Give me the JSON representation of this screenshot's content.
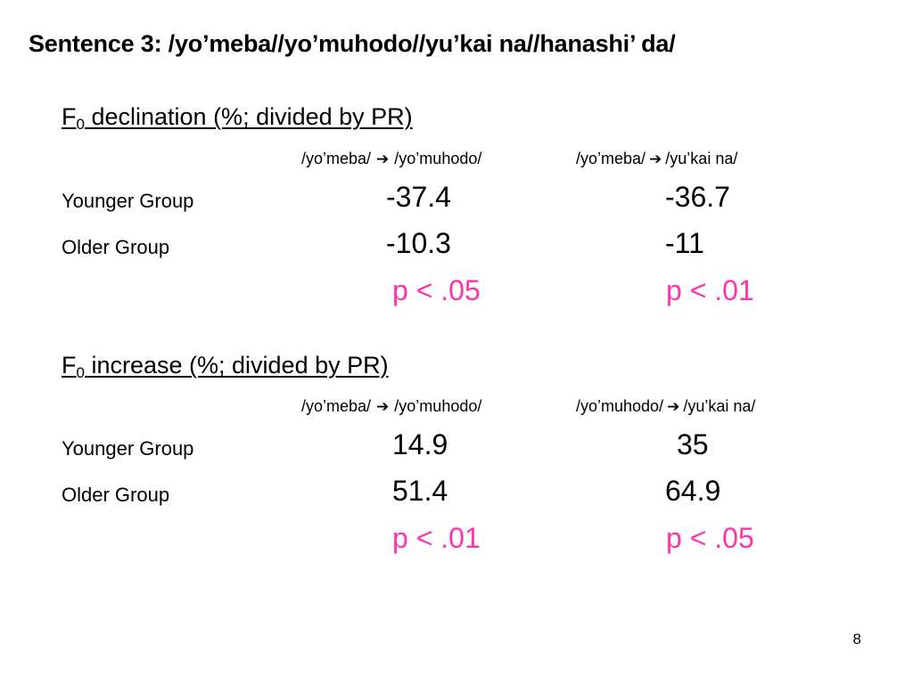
{
  "slide": {
    "title": "Sentence 3: /yo’meba//yo’muhodo//yu’kai na//hanashi’ da/",
    "page_number": "8",
    "accent_color": "#ff33aa",
    "arrow_icon": "right-arrow-icon"
  },
  "sections": [
    {
      "heading_main": "F",
      "heading_sub": "0",
      "heading_rest": " declination (%; divided by PR)",
      "col1": {
        "from": "/yo’meba/",
        "arrow": "➔",
        "to": "/yo’muhodo/"
      },
      "col2": {
        "from": "/yo’meba/",
        "arrow": "➔",
        "to": "/yu’kai na/"
      },
      "rows": [
        {
          "label": "Younger Group",
          "v1": "-37.4",
          "v2": "-36.7"
        },
        {
          "label": "Older Group",
          "v1": "-10.3",
          "v2": "-11"
        }
      ],
      "p1": "p < .05",
      "p2": "p < .01"
    },
    {
      "heading_main": "F",
      "heading_sub": "0",
      "heading_rest": " increase (%; divided by PR)",
      "col1": {
        "from": "/yo’meba/",
        "arrow": "➔",
        "to": "/yo’muhodo/"
      },
      "col2": {
        "from": "/yo’muhodo/",
        "arrow": "➔",
        "to": "/yu’kai na/"
      },
      "rows": [
        {
          "label": "Younger Group",
          "v1": "14.9",
          "v2": "35"
        },
        {
          "label": "Older Group",
          "v1": "51.4",
          "v2": "64.9"
        }
      ],
      "p1": "p < .01",
      "p2": "p < .05"
    }
  ]
}
